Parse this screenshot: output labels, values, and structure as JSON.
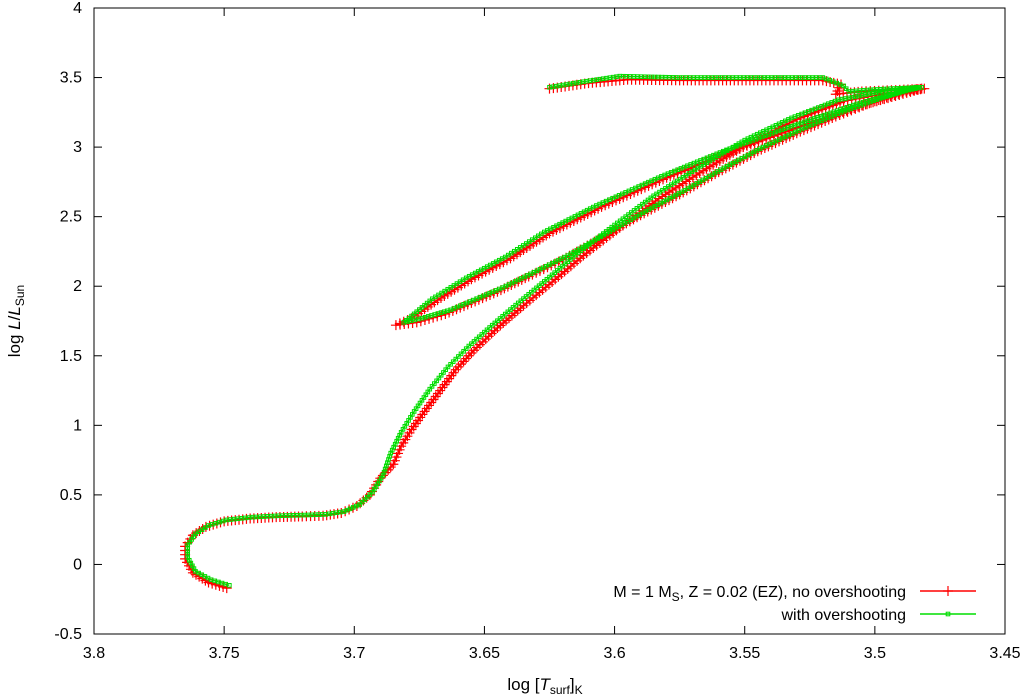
{
  "chart_data": {
    "type": "line",
    "xlabel": {
      "prefix": "log [",
      "var": "T",
      "sub1": "surf",
      "mid": "]",
      "sub2": "K"
    },
    "ylabel": {
      "prefix": "log ",
      "var": "L",
      "slash": "/",
      "var2": "L",
      "sub": "Sun"
    },
    "xlim": [
      3.8,
      3.45
    ],
    "ylim": [
      -0.5,
      4
    ],
    "x_reversed": true,
    "xticks": [
      "3.8",
      "3.75",
      "3.7",
      "3.65",
      "3.6",
      "3.55",
      "3.5",
      "3.45"
    ],
    "yticks": [
      "-0.5",
      "0",
      "0.5",
      "1",
      "1.5",
      "2",
      "2.5",
      "3",
      "3.5",
      "4"
    ],
    "legend_position": "bottom-right",
    "legend": [
      {
        "pre": "M = 1 M",
        "sub": "S",
        "post": ", Z = 0.02 (EZ), no overshooting"
      },
      {
        "pre": "with overshooting",
        "sub": "",
        "post": ""
      }
    ],
    "series": [
      {
        "color": "#ff0000",
        "marker": "plus",
        "points": [
          [
            3.749,
            -0.17
          ],
          [
            3.756,
            -0.13
          ],
          [
            3.762,
            -0.06
          ],
          [
            3.765,
            0.04
          ],
          [
            3.765,
            0.13
          ],
          [
            3.762,
            0.21
          ],
          [
            3.757,
            0.27
          ],
          [
            3.75,
            0.31
          ],
          [
            3.74,
            0.33
          ],
          [
            3.73,
            0.34
          ],
          [
            3.72,
            0.345
          ],
          [
            3.712,
            0.35
          ],
          [
            3.705,
            0.37
          ],
          [
            3.699,
            0.42
          ],
          [
            3.694,
            0.5
          ],
          [
            3.69,
            0.62
          ],
          [
            3.685,
            0.72
          ],
          [
            3.682,
            0.85
          ],
          [
            3.678,
            0.97
          ],
          [
            3.673,
            1.1
          ],
          [
            3.667,
            1.25
          ],
          [
            3.661,
            1.4
          ],
          [
            3.654,
            1.54
          ],
          [
            3.645,
            1.7
          ],
          [
            3.635,
            1.86
          ],
          [
            3.624,
            2.03
          ],
          [
            3.612,
            2.22
          ],
          [
            3.598,
            2.42
          ],
          [
            3.583,
            2.63
          ],
          [
            3.566,
            2.83
          ],
          [
            3.548,
            3.03
          ],
          [
            3.53,
            3.2
          ],
          [
            3.512,
            3.33
          ],
          [
            3.495,
            3.39
          ],
          [
            3.482,
            3.42
          ],
          [
            3.505,
            3.3
          ],
          [
            3.53,
            3.14
          ],
          [
            3.555,
            2.97
          ],
          [
            3.58,
            2.78
          ],
          [
            3.605,
            2.57
          ],
          [
            3.625,
            2.38
          ],
          [
            3.64,
            2.2
          ],
          [
            3.655,
            2.05
          ],
          [
            3.668,
            1.9
          ],
          [
            3.678,
            1.77
          ],
          [
            3.684,
            1.72
          ],
          [
            3.676,
            1.74
          ],
          [
            3.665,
            1.8
          ],
          [
            3.655,
            1.88
          ],
          [
            3.645,
            1.96
          ],
          [
            3.633,
            2.07
          ],
          [
            3.62,
            2.19
          ],
          [
            3.605,
            2.35
          ],
          [
            3.59,
            2.51
          ],
          [
            3.575,
            2.66
          ],
          [
            3.56,
            2.82
          ],
          [
            3.545,
            2.97
          ],
          [
            3.53,
            3.1
          ],
          [
            3.515,
            3.22
          ],
          [
            3.5,
            3.33
          ],
          [
            3.488,
            3.4
          ],
          [
            3.481,
            3.42
          ],
          [
            3.492,
            3.41
          ],
          [
            3.505,
            3.4
          ],
          [
            3.515,
            3.38
          ],
          [
            3.513,
            3.45
          ],
          [
            3.52,
            3.48
          ],
          [
            3.545,
            3.48
          ],
          [
            3.575,
            3.48
          ],
          [
            3.595,
            3.485
          ],
          [
            3.61,
            3.46
          ],
          [
            3.625,
            3.42
          ]
        ]
      },
      {
        "color": "#00dd00",
        "marker": "square",
        "points": [
          [
            3.748,
            -0.15
          ],
          [
            3.755,
            -0.11
          ],
          [
            3.761,
            -0.05
          ],
          [
            3.764,
            0.05
          ],
          [
            3.764,
            0.14
          ],
          [
            3.761,
            0.22
          ],
          [
            3.756,
            0.28
          ],
          [
            3.749,
            0.32
          ],
          [
            3.739,
            0.34
          ],
          [
            3.729,
            0.35
          ],
          [
            3.719,
            0.355
          ],
          [
            3.711,
            0.36
          ],
          [
            3.704,
            0.38
          ],
          [
            3.698,
            0.43
          ],
          [
            3.693,
            0.52
          ],
          [
            3.689,
            0.64
          ],
          [
            3.686,
            0.8
          ],
          [
            3.682,
            0.95
          ],
          [
            3.677,
            1.1
          ],
          [
            3.671,
            1.26
          ],
          [
            3.664,
            1.42
          ],
          [
            3.656,
            1.57
          ],
          [
            3.647,
            1.72
          ],
          [
            3.637,
            1.88
          ],
          [
            3.626,
            2.05
          ],
          [
            3.614,
            2.24
          ],
          [
            3.6,
            2.44
          ],
          [
            3.585,
            2.65
          ],
          [
            3.568,
            2.85
          ],
          [
            3.55,
            3.05
          ],
          [
            3.532,
            3.21
          ],
          [
            3.514,
            3.34
          ],
          [
            3.497,
            3.4
          ],
          [
            3.484,
            3.43
          ],
          [
            3.507,
            3.31
          ],
          [
            3.532,
            3.15
          ],
          [
            3.557,
            2.98
          ],
          [
            3.582,
            2.79
          ],
          [
            3.607,
            2.58
          ],
          [
            3.627,
            2.39
          ],
          [
            3.642,
            2.21
          ],
          [
            3.657,
            2.06
          ],
          [
            3.67,
            1.91
          ],
          [
            3.679,
            1.77
          ],
          [
            3.681,
            1.74
          ],
          [
            3.674,
            1.77
          ],
          [
            3.663,
            1.83
          ],
          [
            3.653,
            1.91
          ],
          [
            3.643,
            1.99
          ],
          [
            3.631,
            2.1
          ],
          [
            3.618,
            2.22
          ],
          [
            3.603,
            2.38
          ],
          [
            3.588,
            2.54
          ],
          [
            3.573,
            2.69
          ],
          [
            3.558,
            2.85
          ],
          [
            3.543,
            3.0
          ],
          [
            3.528,
            3.13
          ],
          [
            3.513,
            3.25
          ],
          [
            3.498,
            3.35
          ],
          [
            3.487,
            3.41
          ],
          [
            3.482,
            3.43
          ],
          [
            3.494,
            3.42
          ],
          [
            3.503,
            3.41
          ],
          [
            3.51,
            3.4
          ],
          [
            3.512,
            3.44
          ],
          [
            3.52,
            3.5
          ],
          [
            3.545,
            3.5
          ],
          [
            3.575,
            3.5
          ],
          [
            3.598,
            3.51
          ],
          [
            3.612,
            3.47
          ],
          [
            3.625,
            3.43
          ]
        ]
      }
    ]
  }
}
